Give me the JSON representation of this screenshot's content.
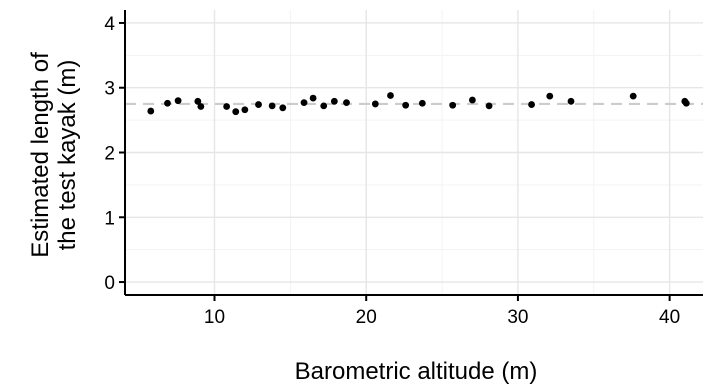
{
  "chart_data": {
    "type": "scatter",
    "title": "",
    "xlabel": "Barometric altitude (m)",
    "ylabel_lines": [
      "Estimated length of",
      "the test kayak (m)"
    ],
    "xlim": [
      4.1,
      42.2
    ],
    "ylim": [
      -0.2,
      4.2
    ],
    "xticks": [
      10,
      20,
      30,
      40
    ],
    "yticks": [
      0,
      1,
      2,
      3,
      4
    ],
    "x_minor_grid": [
      15,
      25,
      35
    ],
    "y_minor_grid": [
      0.5,
      1.5,
      2.5,
      3.5
    ],
    "reference_line": {
      "y": 2.75,
      "style": "dashed",
      "color": "#cccccc"
    },
    "grid": true,
    "colors": {
      "background": "#ffffff",
      "panel": "#ffffff",
      "grid_major": "#e6e6e6",
      "grid_minor": "#f3f3f3",
      "point": "#000000",
      "axis": "#000000"
    },
    "series": [
      {
        "x": [
          5.8,
          6.9,
          7.6,
          8.9,
          9.1,
          10.8,
          11.4,
          12.0,
          12.9,
          13.8,
          14.5,
          15.9,
          16.5,
          17.2,
          17.9,
          18.7,
          20.6,
          21.6,
          22.6,
          23.7,
          25.7,
          27.0,
          28.1,
          30.9,
          32.1,
          33.5,
          37.6,
          41.0,
          41.1
        ],
        "y": [
          2.64,
          2.76,
          2.8,
          2.79,
          2.71,
          2.71,
          2.63,
          2.66,
          2.74,
          2.72,
          2.69,
          2.77,
          2.84,
          2.72,
          2.79,
          2.77,
          2.75,
          2.88,
          2.73,
          2.76,
          2.73,
          2.81,
          2.72,
          2.74,
          2.87,
          2.79,
          2.87,
          2.79,
          2.76
        ]
      }
    ]
  }
}
